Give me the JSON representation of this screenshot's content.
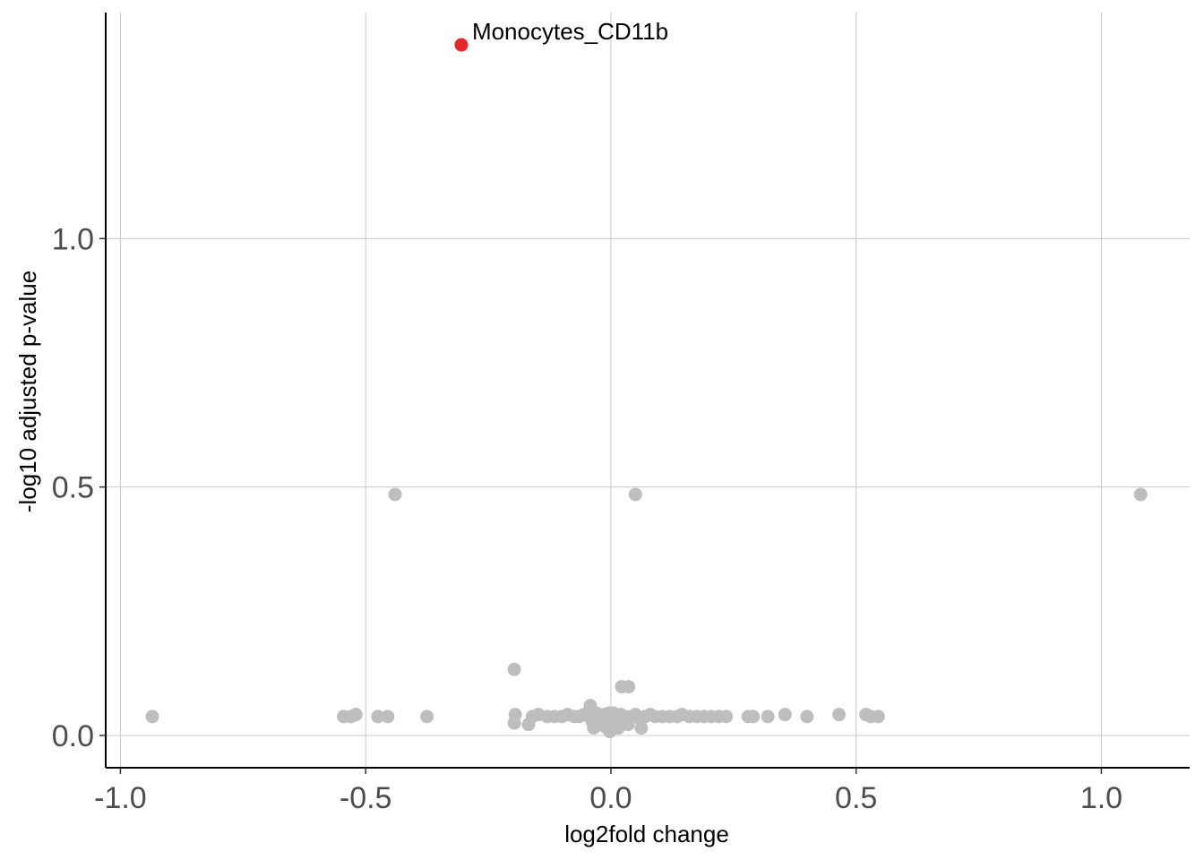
{
  "chart_data": {
    "type": "scatter",
    "title": "",
    "xlabel": "log2fold change",
    "ylabel": "-log10 adjusted p-value",
    "xlim": [
      -1.03,
      1.18
    ],
    "ylim": [
      -0.065,
      1.455
    ],
    "xticks": [
      -1.0,
      -0.5,
      0.0,
      0.5,
      1.0
    ],
    "xtick_labels": [
      "-1.0",
      "-0.5",
      "0.0",
      "0.5",
      "1.0"
    ],
    "yticks": [
      0.0,
      0.5,
      1.0
    ],
    "ytick_labels": [
      "0.0",
      "0.5",
      "1.0"
    ],
    "grid": true,
    "colors": {
      "significant": "#e8262a",
      "not_significant": "#bebebe"
    },
    "highlighted": [
      {
        "label": "Monocytes_CD11b",
        "x": -0.305,
        "y": 1.39
      }
    ],
    "points": [
      {
        "x": -0.935,
        "y": 0.038
      },
      {
        "x": -0.44,
        "y": 0.485
      },
      {
        "x": 0.05,
        "y": 0.485
      },
      {
        "x": 1.08,
        "y": 0.485
      },
      {
        "x": -0.197,
        "y": 0.133
      },
      {
        "x": 0.022,
        "y": 0.098
      },
      {
        "x": 0.036,
        "y": 0.098
      },
      {
        "x": -0.545,
        "y": 0.038
      },
      {
        "x": -0.53,
        "y": 0.038
      },
      {
        "x": -0.52,
        "y": 0.042
      },
      {
        "x": -0.475,
        "y": 0.038
      },
      {
        "x": -0.455,
        "y": 0.038
      },
      {
        "x": -0.375,
        "y": 0.038
      },
      {
        "x": -0.195,
        "y": 0.042
      },
      {
        "x": -0.197,
        "y": 0.025
      },
      {
        "x": -0.168,
        "y": 0.022
      },
      {
        "x": -0.16,
        "y": 0.038
      },
      {
        "x": -0.148,
        "y": 0.042
      },
      {
        "x": -0.13,
        "y": 0.038
      },
      {
        "x": -0.115,
        "y": 0.038
      },
      {
        "x": -0.1,
        "y": 0.038
      },
      {
        "x": -0.088,
        "y": 0.042
      },
      {
        "x": -0.075,
        "y": 0.038
      },
      {
        "x": -0.065,
        "y": 0.038
      },
      {
        "x": -0.055,
        "y": 0.042
      },
      {
        "x": -0.045,
        "y": 0.038
      },
      {
        "x": -0.042,
        "y": 0.06
      },
      {
        "x": -0.038,
        "y": 0.028
      },
      {
        "x": -0.035,
        "y": 0.015
      },
      {
        "x": -0.03,
        "y": 0.045
      },
      {
        "x": -0.025,
        "y": 0.035
      },
      {
        "x": -0.02,
        "y": 0.025
      },
      {
        "x": -0.015,
        "y": 0.042
      },
      {
        "x": -0.012,
        "y": 0.018
      },
      {
        "x": -0.008,
        "y": 0.03
      },
      {
        "x": -0.004,
        "y": 0.045
      },
      {
        "x": -0.002,
        "y": 0.008
      },
      {
        "x": 0.0,
        "y": 0.035
      },
      {
        "x": 0.002,
        "y": 0.02
      },
      {
        "x": 0.005,
        "y": 0.045
      },
      {
        "x": 0.008,
        "y": 0.028
      },
      {
        "x": 0.012,
        "y": 0.038
      },
      {
        "x": 0.015,
        "y": 0.015
      },
      {
        "x": 0.02,
        "y": 0.042
      },
      {
        "x": 0.025,
        "y": 0.028
      },
      {
        "x": 0.03,
        "y": 0.038
      },
      {
        "x": 0.035,
        "y": 0.022
      },
      {
        "x": 0.042,
        "y": 0.038
      },
      {
        "x": 0.05,
        "y": 0.042
      },
      {
        "x": 0.058,
        "y": 0.035
      },
      {
        "x": 0.062,
        "y": 0.015
      },
      {
        "x": 0.07,
        "y": 0.038
      },
      {
        "x": 0.08,
        "y": 0.042
      },
      {
        "x": 0.09,
        "y": 0.038
      },
      {
        "x": 0.105,
        "y": 0.038
      },
      {
        "x": 0.12,
        "y": 0.038
      },
      {
        "x": 0.135,
        "y": 0.038
      },
      {
        "x": 0.145,
        "y": 0.042
      },
      {
        "x": 0.16,
        "y": 0.038
      },
      {
        "x": 0.175,
        "y": 0.038
      },
      {
        "x": 0.19,
        "y": 0.038
      },
      {
        "x": 0.205,
        "y": 0.038
      },
      {
        "x": 0.22,
        "y": 0.038
      },
      {
        "x": 0.235,
        "y": 0.038
      },
      {
        "x": 0.28,
        "y": 0.038
      },
      {
        "x": 0.29,
        "y": 0.038
      },
      {
        "x": 0.32,
        "y": 0.038
      },
      {
        "x": 0.355,
        "y": 0.042
      },
      {
        "x": 0.4,
        "y": 0.038
      },
      {
        "x": 0.465,
        "y": 0.042
      },
      {
        "x": 0.52,
        "y": 0.042
      },
      {
        "x": 0.53,
        "y": 0.038
      },
      {
        "x": 0.545,
        "y": 0.038
      }
    ]
  }
}
